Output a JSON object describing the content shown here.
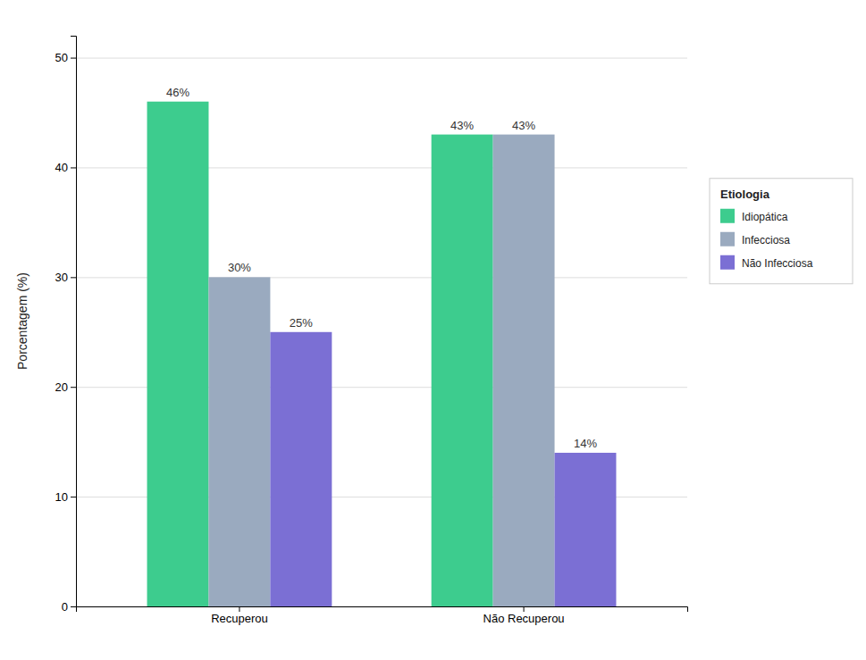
{
  "chart_data": {
    "type": "bar",
    "categories": [
      "Recuperou",
      "Não Recuperou"
    ],
    "series": [
      {
        "name": "Idiopática",
        "color": "#3dcc8e",
        "values": [
          46,
          43
        ],
        "value_labels": [
          "46%",
          "43%"
        ]
      },
      {
        "name": "Infecciosa",
        "color": "#9aaabf",
        "values": [
          30,
          43
        ],
        "value_labels": [
          "30%",
          "43%"
        ]
      },
      {
        "name": "Não Infecciosa",
        "color": "#7b6fd4",
        "values": [
          25,
          14
        ],
        "value_labels": [
          "25%",
          "14%"
        ]
      }
    ],
    "ylabel": "Porcentagem (%)",
    "ylim": [
      0,
      52
    ],
    "yticks": [
      0,
      10,
      20,
      30,
      40,
      50
    ],
    "legend_title": "Etiologia",
    "legend": "right",
    "grid": true,
    "data_labels": true
  }
}
